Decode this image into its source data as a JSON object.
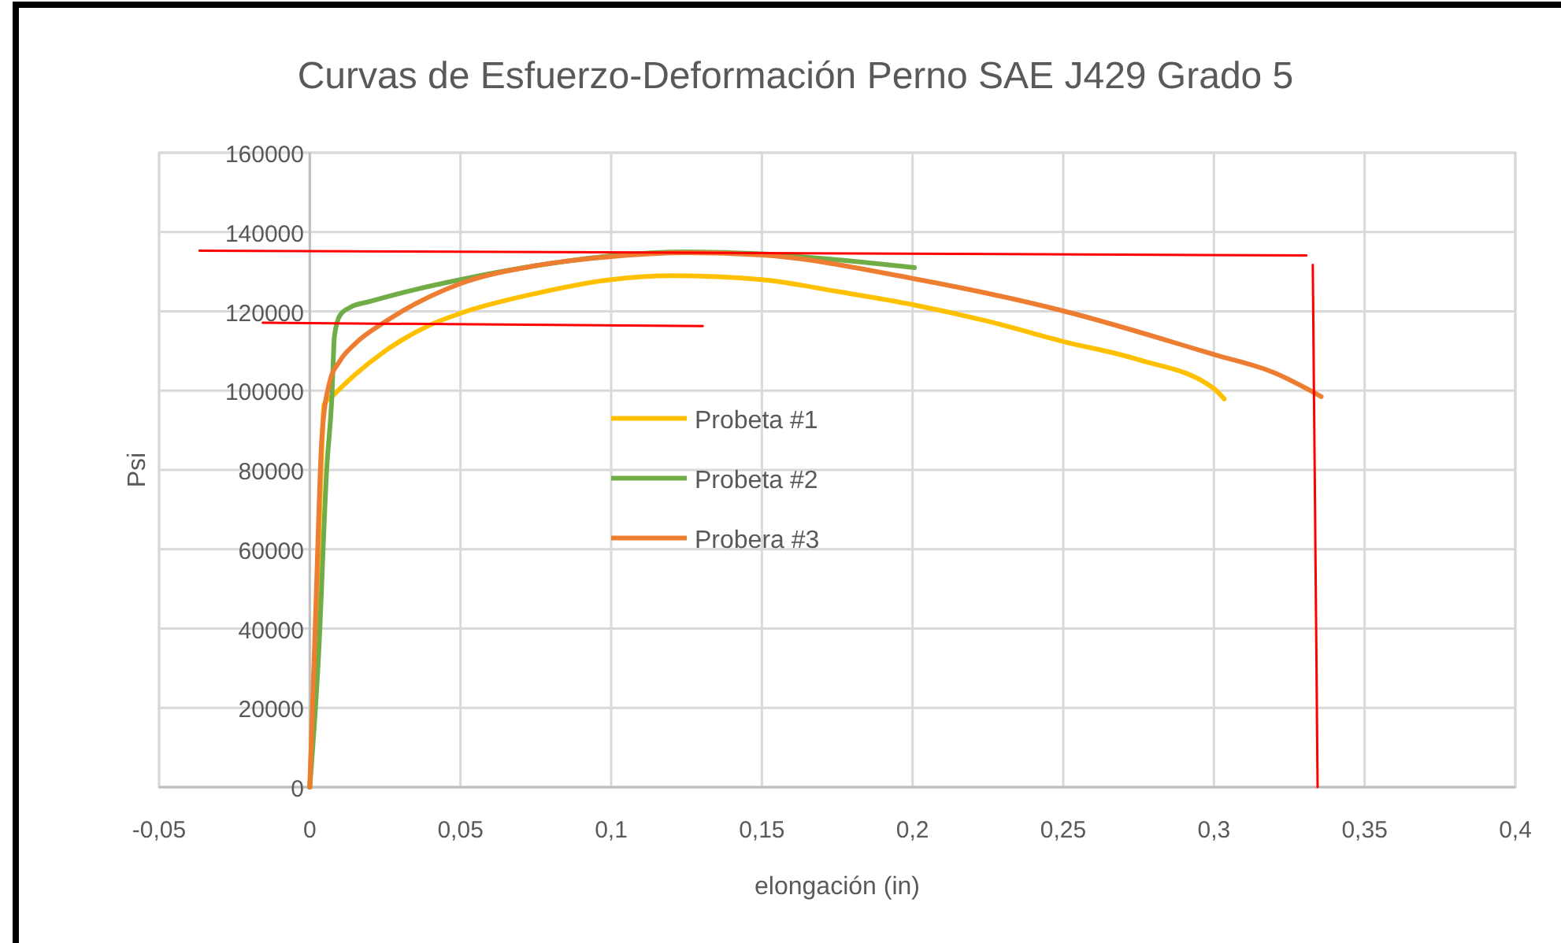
{
  "chart_data": {
    "type": "line",
    "title": "Curvas de Esfuerzo-Deformación  Perno SAE J429 Grado 5",
    "xlabel": "elongación (in)",
    "ylabel": "Psi",
    "xlim": [
      -0.05,
      0.4
    ],
    "xticks": [
      {
        "value": -0.05,
        "label": "-0,05"
      },
      0,
      {
        "value": 0.05,
        "label": "0,05"
      },
      {
        "value": 0.1,
        "label": "0,1"
      },
      {
        "value": 0.15,
        "label": "0,15"
      },
      {
        "value": 0.2,
        "label": "0,2"
      },
      {
        "value": 0.25,
        "label": "0,25"
      },
      {
        "value": 0.3,
        "label": "0,3"
      },
      {
        "value": 0.35,
        "label": "0,35"
      },
      {
        "value": 0.4,
        "label": "0,4"
      }
    ],
    "ylim": [
      0,
      160000
    ],
    "yticks": [
      0,
      20000,
      40000,
      60000,
      80000,
      100000,
      120000,
      140000,
      160000
    ],
    "grid": true,
    "legend": "center",
    "marker": "none",
    "line_style": "solid",
    "series": [
      {
        "name": "Probeta #1",
        "color": "#ffc000",
        "x": [
          0,
          0.002,
          0.004,
          0.0047,
          0.008,
          0.015,
          0.025,
          0.0395,
          0.05,
          0.075,
          0.1,
          0.12,
          0.15,
          0.175,
          0.2,
          0.225,
          0.25,
          0.275,
          0.3,
          0.3034
        ],
        "values": [
          0,
          40000,
          85000,
          96500,
          99000,
          104000,
          110000,
          116400,
          119500,
          124500,
          128000,
          129000,
          128000,
          125000,
          121700,
          117500,
          112400,
          107800,
          100500,
          97900
        ]
      },
      {
        "name": "Probeta #2",
        "color": "#70ad47",
        "x": [
          0,
          0.003,
          0.0056,
          0.0073,
          0.0082,
          0.01,
          0.0134,
          0.02,
          0.035,
          0.05,
          0.075,
          0.1,
          0.125,
          0.15,
          0.175,
          0.2006
        ],
        "values": [
          0,
          34400,
          80000,
          97900,
          113800,
          119000,
          121000,
          122500,
          125500,
          128000,
          131500,
          134000,
          135000,
          134500,
          133000,
          131000
        ]
      },
      {
        "name": "Probera #3",
        "color": "#ed7d31",
        "x": [
          0,
          0.002,
          0.004,
          0.0065,
          0.01,
          0.015,
          0.0257,
          0.05,
          0.075,
          0.1,
          0.125,
          0.15,
          0.2,
          0.25,
          0.3,
          0.32,
          0.3356
        ],
        "values": [
          0,
          45000,
          88000,
          101900,
          107500,
          111800,
          117700,
          127000,
          131500,
          133800,
          134800,
          134200,
          128300,
          120100,
          109100,
          104500,
          98500
        ]
      },
      {
        "color": "#ff0000",
        "x": [
          -0.0366,
          0.3307
        ],
        "values": [
          135300,
          134100
        ]
      },
      {
        "color": "#ff0000",
        "x": [
          -0.0156,
          0.1304
        ],
        "values": [
          117100,
          116300
        ]
      },
      {
        "color": "#ff0000",
        "x": [
          0.3328,
          0.3344
        ],
        "values": [
          131700,
          0
        ]
      }
    ]
  }
}
